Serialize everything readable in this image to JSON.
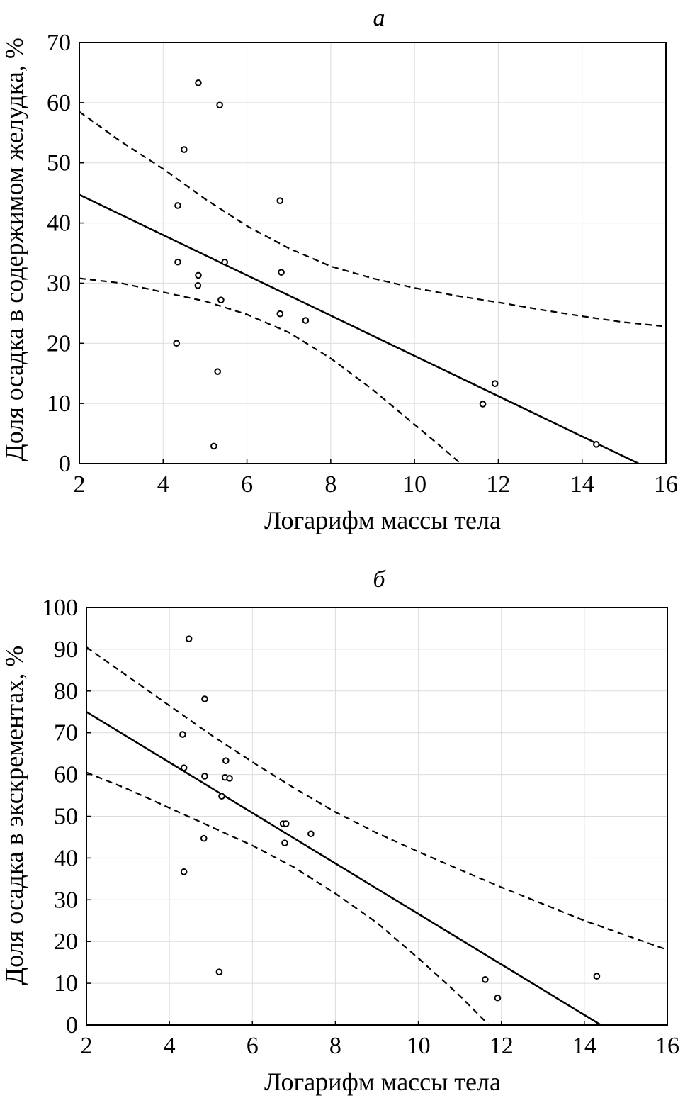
{
  "chart_data": [
    {
      "type": "scatter",
      "title": "а",
      "xlabel": "Логарифм массы тела",
      "ylabel": "Доля осадка в содержимом желудка, %",
      "xlim": [
        2,
        16
      ],
      "ylim": [
        0,
        70
      ],
      "xticks": [
        2,
        4,
        6,
        8,
        10,
        12,
        14,
        16
      ],
      "yticks": [
        0,
        10,
        20,
        30,
        40,
        50,
        60,
        70
      ],
      "grid": true,
      "points": [
        [
          4.84,
          63.3
        ],
        [
          5.35,
          59.6
        ],
        [
          4.5,
          52.2
        ],
        [
          4.35,
          42.9
        ],
        [
          6.79,
          43.7
        ],
        [
          4.35,
          33.5
        ],
        [
          5.47,
          33.5
        ],
        [
          4.84,
          31.3
        ],
        [
          6.82,
          31.8
        ],
        [
          4.83,
          29.6
        ],
        [
          5.38,
          27.2
        ],
        [
          6.79,
          24.9
        ],
        [
          7.4,
          23.8
        ],
        [
          4.32,
          20.0
        ],
        [
          5.3,
          15.3
        ],
        [
          5.21,
          2.9
        ],
        [
          11.92,
          13.3
        ],
        [
          11.63,
          9.9
        ],
        [
          14.34,
          3.2
        ]
      ],
      "fit_line": [
        [
          2,
          44.7
        ],
        [
          15.35,
          0
        ]
      ],
      "ci_upper": [
        [
          2,
          58.5
        ],
        [
          3,
          53.5
        ],
        [
          4,
          49
        ],
        [
          5,
          44
        ],
        [
          6,
          39.5
        ],
        [
          7,
          35.8
        ],
        [
          8,
          32.8
        ],
        [
          9,
          30.8
        ],
        [
          10,
          29.2
        ],
        [
          11,
          27.9
        ],
        [
          12,
          26.8
        ],
        [
          13,
          25.6
        ],
        [
          14,
          24.5
        ],
        [
          15,
          23.5
        ],
        [
          16,
          22.8
        ]
      ],
      "ci_lower": [
        [
          2,
          30.8
        ],
        [
          3,
          30
        ],
        [
          4,
          28.5
        ],
        [
          5,
          27
        ],
        [
          6,
          24.8
        ],
        [
          7,
          21.8
        ],
        [
          8,
          17.5
        ],
        [
          9,
          12.3
        ],
        [
          10,
          6.5
        ],
        [
          10.6,
          3
        ],
        [
          11.1,
          0
        ]
      ]
    },
    {
      "type": "scatter",
      "title": "б",
      "xlabel": "Логарифм массы тела",
      "ylabel": "Доля осадка в экскрементах, %",
      "xlim": [
        2,
        16
      ],
      "ylim": [
        0,
        100
      ],
      "xticks": [
        2,
        4,
        6,
        8,
        10,
        12,
        14,
        16
      ],
      "yticks": [
        0,
        10,
        20,
        30,
        40,
        50,
        60,
        70,
        80,
        90,
        100
      ],
      "grid": true,
      "points": [
        [
          4.47,
          92.5
        ],
        [
          4.85,
          78.1
        ],
        [
          4.32,
          69.6
        ],
        [
          5.36,
          63.3
        ],
        [
          4.35,
          61.6
        ],
        [
          4.85,
          59.6
        ],
        [
          5.34,
          59.3
        ],
        [
          5.45,
          59.1
        ],
        [
          5.26,
          54.8
        ],
        [
          6.74,
          48.2
        ],
        [
          6.81,
          48.2
        ],
        [
          7.41,
          45.8
        ],
        [
          4.83,
          44.7
        ],
        [
          6.78,
          43.6
        ],
        [
          4.35,
          36.7
        ],
        [
          5.2,
          12.7
        ],
        [
          11.61,
          10.9
        ],
        [
          11.91,
          6.5
        ],
        [
          14.3,
          11.7
        ]
      ],
      "fit_line": [
        [
          2,
          75
        ],
        [
          14.4,
          0
        ]
      ],
      "ci_upper": [
        [
          2,
          90.5
        ],
        [
          3,
          83.5
        ],
        [
          4,
          76.5
        ],
        [
          5,
          69.5
        ],
        [
          6,
          63
        ],
        [
          7,
          56.8
        ],
        [
          8,
          51
        ],
        [
          9,
          46
        ],
        [
          10,
          41.5
        ],
        [
          11,
          37.2
        ],
        [
          12,
          33
        ],
        [
          13,
          29
        ],
        [
          14,
          25
        ],
        [
          15,
          21.5
        ],
        [
          16,
          18
        ]
      ],
      "ci_lower": [
        [
          2,
          60.5
        ],
        [
          3,
          56.5
        ],
        [
          4,
          52
        ],
        [
          5,
          47.5
        ],
        [
          6,
          43
        ],
        [
          7,
          37.8
        ],
        [
          8,
          31.5
        ],
        [
          9,
          24.5
        ],
        [
          10,
          16
        ],
        [
          11,
          7
        ],
        [
          11.7,
          0
        ]
      ]
    }
  ]
}
